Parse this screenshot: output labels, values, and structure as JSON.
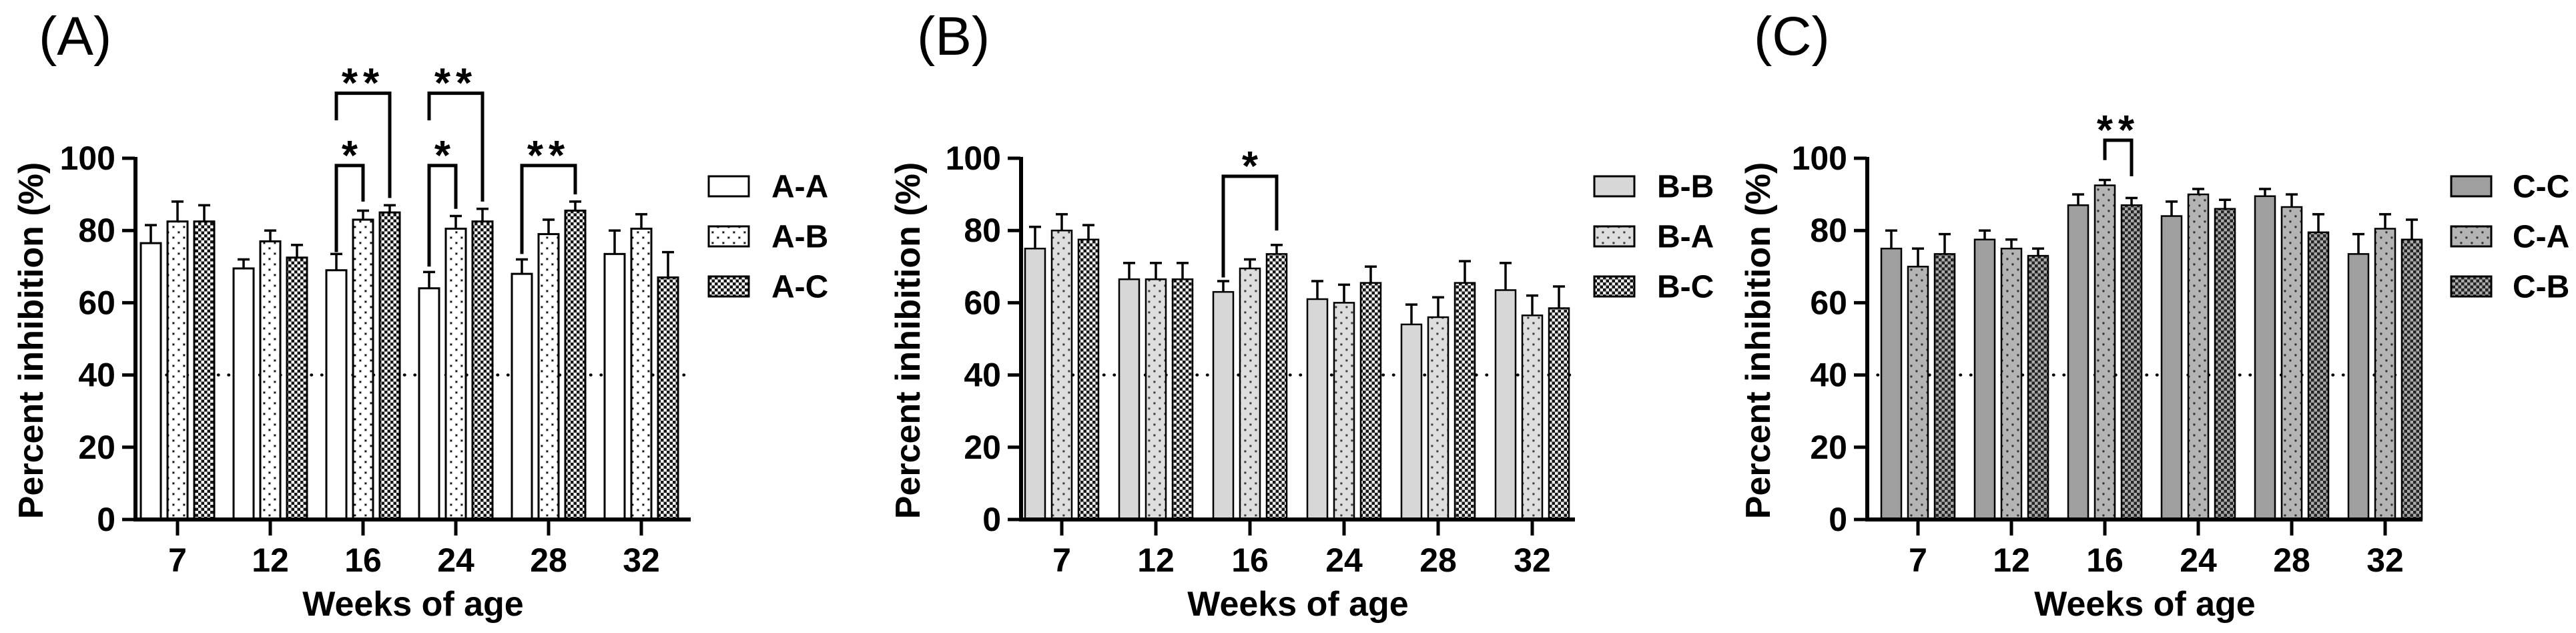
{
  "figure_title": "",
  "shared": {
    "xlabel": "Weeks of age",
    "ylabel": "Percent inhibition (%)",
    "categories": [
      "7",
      "12",
      "16",
      "24",
      "28",
      "32"
    ],
    "yticks": [
      0,
      20,
      40,
      60,
      80,
      100
    ],
    "ylim": [
      0,
      100
    ],
    "reference_line_y": 40,
    "reference_line_style": "dotted",
    "axis_color": "#000000",
    "background_color": "#ffffff",
    "legend_position": "right"
  },
  "chart_data": [
    {
      "type": "bar",
      "panel_label": "(A)",
      "xlabel": "Weeks of age",
      "ylabel": "Percent inhibition (%)",
      "categories": [
        "7",
        "12",
        "16",
        "24",
        "28",
        "32"
      ],
      "ylim": [
        0,
        100
      ],
      "yticks": [
        0,
        20,
        40,
        60,
        80,
        100
      ],
      "reference_line_y": 40,
      "series": [
        {
          "name": "A-A",
          "style": {
            "pattern": "solid",
            "fill": "#ffffff",
            "accent": "#000000"
          },
          "values": [
            76.5,
            69.5,
            69,
            64,
            68,
            73.5
          ],
          "errors": [
            5,
            2.5,
            4.5,
            4.5,
            4,
            6.5
          ]
        },
        {
          "name": "A-B",
          "style": {
            "pattern": "dots",
            "fill": "#ffffff",
            "accent": "#161616"
          },
          "values": [
            82.5,
            77,
            83,
            80.5,
            79,
            80.5
          ],
          "errors": [
            5.5,
            3,
            2.5,
            3.5,
            4,
            4
          ]
        },
        {
          "name": "A-C",
          "style": {
            "pattern": "checker",
            "fill": "#ffffff",
            "accent": "#141414"
          },
          "values": [
            82.5,
            72.5,
            85,
            82.5,
            85.5,
            67
          ],
          "errors": [
            4.5,
            3.5,
            2,
            3.5,
            2.5,
            7
          ]
        }
      ],
      "legend": [
        "A-A",
        "A-B",
        "A-C"
      ],
      "significance": [
        {
          "group": "16",
          "from": "A-A",
          "to": "A-B",
          "label": "*",
          "bar_y": 98,
          "left_leg_y": 74,
          "right_leg_y": 88
        },
        {
          "group": "16",
          "from": "A-A",
          "to": "A-C",
          "label": "**",
          "bar_y": 118,
          "left_leg_y": 110.5,
          "right_leg_y": 89
        },
        {
          "group": "24",
          "from": "A-A",
          "to": "A-B",
          "label": "*",
          "bar_y": 98,
          "left_leg_y": 70,
          "right_leg_y": 86
        },
        {
          "group": "24",
          "from": "A-A",
          "to": "A-C",
          "label": "**",
          "bar_y": 118,
          "left_leg_y": 110.5,
          "right_leg_y": 88
        },
        {
          "group": "28",
          "from": "A-A",
          "to": "A-C",
          "label": "**",
          "bar_y": 98,
          "left_leg_y": 73.5,
          "right_leg_y": 90
        }
      ]
    },
    {
      "type": "bar",
      "panel_label": "(B)",
      "xlabel": "Weeks of age",
      "ylabel": "Percent inhibition (%)",
      "categories": [
        "7",
        "12",
        "16",
        "24",
        "28",
        "32"
      ],
      "ylim": [
        0,
        100
      ],
      "yticks": [
        0,
        20,
        40,
        60,
        80,
        100
      ],
      "reference_line_y": 40,
      "series": [
        {
          "name": "B-B",
          "style": {
            "pattern": "solid",
            "fill": "#d7d7d7",
            "accent": "#000000"
          },
          "values": [
            75,
            66.5,
            63,
            61,
            54,
            63.5
          ],
          "errors": [
            6,
            4.5,
            3,
            5,
            5.5,
            7.5
          ]
        },
        {
          "name": "B-A",
          "style": {
            "pattern": "dots",
            "fill": "#dedede",
            "accent": "#3a3a3a"
          },
          "values": [
            80,
            66.5,
            69.5,
            60,
            56,
            56.5
          ],
          "errors": [
            4.5,
            4.5,
            2.5,
            5,
            5.5,
            5.5
          ]
        },
        {
          "name": "B-C",
          "style": {
            "pattern": "checker",
            "fill": "#ececec",
            "accent": "#161616"
          },
          "values": [
            77.5,
            66.5,
            73.5,
            65.5,
            65.5,
            58.5
          ],
          "errors": [
            4,
            4.5,
            2.5,
            4.5,
            6,
            6
          ]
        }
      ],
      "legend": [
        "B-B",
        "B-A",
        "B-C"
      ],
      "significance": [
        {
          "group": "16",
          "from": "B-B",
          "to": "B-C",
          "label": "*",
          "bar_y": 95,
          "left_leg_y": 67,
          "right_leg_y": 80
        }
      ]
    },
    {
      "type": "bar",
      "panel_label": "(C)",
      "xlabel": "Weeks of age",
      "ylabel": "Percent inhibition (%)",
      "categories": [
        "7",
        "12",
        "16",
        "24",
        "28",
        "32"
      ],
      "ylim": [
        0,
        100
      ],
      "yticks": [
        0,
        20,
        40,
        60,
        80,
        100
      ],
      "reference_line_y": 40,
      "series": [
        {
          "name": "C-C",
          "style": {
            "pattern": "solid",
            "fill": "#9f9f9f",
            "accent": "#000000"
          },
          "values": [
            75,
            77.5,
            87,
            84,
            89.5,
            73.5
          ],
          "errors": [
            5,
            2.5,
            3,
            4,
            2,
            5.5
          ]
        },
        {
          "name": "C-A",
          "style": {
            "pattern": "dots",
            "fill": "#b4b4b4",
            "accent": "#2e2e2e"
          },
          "values": [
            70,
            75,
            92.5,
            90,
            86.5,
            80.5
          ],
          "errors": [
            5,
            2.5,
            1.5,
            1.5,
            3.5,
            4
          ]
        },
        {
          "name": "C-B",
          "style": {
            "pattern": "checker",
            "fill": "#ababab",
            "accent": "#242424"
          },
          "values": [
            73.5,
            73,
            87,
            86,
            79.5,
            77.5
          ],
          "errors": [
            5.5,
            2,
            2,
            2.5,
            5,
            5.5
          ]
        }
      ],
      "legend": [
        "C-C",
        "C-A",
        "C-B"
      ],
      "significance": [
        {
          "group": "16",
          "from": "C-A",
          "to": "C-B",
          "label": "**",
          "bar_y": 105,
          "left_leg_y": 99.5,
          "right_leg_y": 95
        }
      ]
    }
  ]
}
